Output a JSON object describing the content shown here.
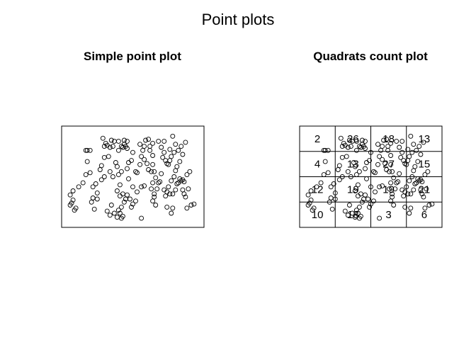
{
  "figure": {
    "title": "Point plots"
  },
  "chart_data": [
    {
      "type": "scatter",
      "title": "Simple point plot",
      "xlim": [
        0,
        1
      ],
      "ylim": [
        0,
        1
      ],
      "points": [
        [
          0.06,
          0.32
        ],
        [
          0.08,
          0.27
        ],
        [
          0.07,
          0.24
        ],
        [
          0.06,
          0.22
        ],
        [
          0.09,
          0.17
        ],
        [
          0.1,
          0.19
        ],
        [
          0.08,
          0.36
        ],
        [
          0.12,
          0.4
        ],
        [
          0.15,
          0.44
        ],
        [
          0.17,
          0.52
        ],
        [
          0.18,
          0.65
        ],
        [
          0.17,
          0.76
        ],
        [
          0.2,
          0.76
        ],
        [
          0.2,
          0.54
        ],
        [
          0.22,
          0.4
        ],
        [
          0.21,
          0.25
        ],
        [
          0.23,
          0.18
        ],
        [
          0.25,
          0.28
        ],
        [
          0.24,
          0.43
        ],
        [
          0.27,
          0.57
        ],
        [
          0.28,
          0.61
        ],
        [
          0.3,
          0.8
        ],
        [
          0.29,
          0.88
        ],
        [
          0.31,
          0.83
        ],
        [
          0.32,
          0.81
        ],
        [
          0.34,
          0.79
        ],
        [
          0.35,
          0.86
        ],
        [
          0.36,
          0.8
        ],
        [
          0.37,
          0.85
        ],
        [
          0.38,
          0.64
        ],
        [
          0.39,
          0.6
        ],
        [
          0.4,
          0.76
        ],
        [
          0.42,
          0.8
        ],
        [
          0.43,
          0.79
        ],
        [
          0.44,
          0.82
        ],
        [
          0.45,
          0.8
        ],
        [
          0.44,
          0.86
        ],
        [
          0.46,
          0.78
        ],
        [
          0.41,
          0.42
        ],
        [
          0.39,
          0.36
        ],
        [
          0.41,
          0.31
        ],
        [
          0.43,
          0.33
        ],
        [
          0.44,
          0.25
        ],
        [
          0.42,
          0.2
        ],
        [
          0.4,
          0.17
        ],
        [
          0.41,
          0.14
        ],
        [
          0.43,
          0.11
        ],
        [
          0.42,
          0.09
        ],
        [
          0.39,
          0.1
        ],
        [
          0.37,
          0.14
        ],
        [
          0.34,
          0.12
        ],
        [
          0.32,
          0.16
        ],
        [
          0.35,
          0.22
        ],
        [
          0.45,
          0.28
        ],
        [
          0.46,
          0.32
        ],
        [
          0.48,
          0.28
        ],
        [
          0.5,
          0.23
        ],
        [
          0.49,
          0.2
        ],
        [
          0.52,
          0.26
        ],
        [
          0.53,
          0.35
        ],
        [
          0.5,
          0.4
        ],
        [
          0.47,
          0.48
        ],
        [
          0.52,
          0.55
        ],
        [
          0.53,
          0.54
        ],
        [
          0.55,
          0.62
        ],
        [
          0.56,
          0.7
        ],
        [
          0.57,
          0.76
        ],
        [
          0.58,
          0.8
        ],
        [
          0.59,
          0.86
        ],
        [
          0.61,
          0.87
        ],
        [
          0.62,
          0.8
        ],
        [
          0.62,
          0.76
        ],
        [
          0.64,
          0.71
        ],
        [
          0.64,
          0.62
        ],
        [
          0.61,
          0.57
        ],
        [
          0.63,
          0.55
        ],
        [
          0.65,
          0.55
        ],
        [
          0.64,
          0.44
        ],
        [
          0.63,
          0.38
        ],
        [
          0.65,
          0.33
        ],
        [
          0.65,
          0.3
        ],
        [
          0.64,
          0.26
        ],
        [
          0.66,
          0.22
        ],
        [
          0.56,
          0.09
        ],
        [
          0.58,
          0.67
        ],
        [
          0.55,
          0.82
        ],
        [
          0.5,
          0.74
        ],
        [
          0.49,
          0.66
        ],
        [
          0.47,
          0.64
        ],
        [
          0.46,
          0.58
        ],
        [
          0.68,
          0.85
        ],
        [
          0.7,
          0.79
        ],
        [
          0.72,
          0.74
        ],
        [
          0.71,
          0.69
        ],
        [
          0.73,
          0.66
        ],
        [
          0.74,
          0.63
        ],
        [
          0.76,
          0.66
        ],
        [
          0.75,
          0.62
        ],
        [
          0.77,
          0.7
        ],
        [
          0.79,
          0.74
        ],
        [
          0.76,
          0.77
        ],
        [
          0.78,
          0.9
        ],
        [
          0.8,
          0.82
        ],
        [
          0.82,
          0.76
        ],
        [
          0.84,
          0.8
        ],
        [
          0.85,
          0.72
        ],
        [
          0.83,
          0.65
        ],
        [
          0.81,
          0.6
        ],
        [
          0.8,
          0.56
        ],
        [
          0.79,
          0.5
        ],
        [
          0.77,
          0.46
        ],
        [
          0.75,
          0.4
        ],
        [
          0.74,
          0.35
        ],
        [
          0.76,
          0.33
        ],
        [
          0.78,
          0.33
        ],
        [
          0.8,
          0.37
        ],
        [
          0.81,
          0.43
        ],
        [
          0.82,
          0.44
        ],
        [
          0.83,
          0.48
        ],
        [
          0.84,
          0.46
        ],
        [
          0.85,
          0.47
        ],
        [
          0.86,
          0.45
        ],
        [
          0.88,
          0.52
        ],
        [
          0.9,
          0.55
        ],
        [
          0.89,
          0.38
        ],
        [
          0.86,
          0.33
        ],
        [
          0.87,
          0.3
        ],
        [
          0.85,
          0.37
        ],
        [
          0.91,
          0.22
        ],
        [
          0.93,
          0.23
        ],
        [
          0.88,
          0.19
        ],
        [
          0.78,
          0.19
        ],
        [
          0.77,
          0.14
        ],
        [
          0.7,
          0.53
        ],
        [
          0.69,
          0.45
        ],
        [
          0.68,
          0.44
        ],
        [
          0.67,
          0.38
        ],
        [
          0.66,
          0.49
        ],
        [
          0.72,
          0.37
        ],
        [
          0.73,
          0.31
        ],
        [
          0.74,
          0.2
        ],
        [
          0.22,
          0.29
        ],
        [
          0.25,
          0.34
        ],
        [
          0.28,
          0.47
        ],
        [
          0.3,
          0.5
        ],
        [
          0.34,
          0.55
        ],
        [
          0.36,
          0.5
        ],
        [
          0.4,
          0.52
        ],
        [
          0.42,
          0.55
        ],
        [
          0.46,
          0.85
        ],
        [
          0.4,
          0.85
        ],
        [
          0.3,
          0.69
        ],
        [
          0.33,
          0.7
        ],
        [
          0.18,
          0.76
        ],
        [
          0.56,
          0.4
        ],
        [
          0.58,
          0.41
        ],
        [
          0.6,
          0.63
        ],
        [
          0.87,
          0.84
        ],
        [
          0.72,
          0.85
        ],
        [
          0.64,
          0.83
        ]
      ]
    },
    {
      "type": "scatter",
      "title": "Quadrats count plot",
      "xlim": [
        0,
        1
      ],
      "ylim": [
        0,
        1
      ],
      "quadrats": {
        "nx": 4,
        "ny": 4
      },
      "counts": [
        [
          "2",
          "26",
          "18",
          "13"
        ],
        [
          "4",
          "13",
          "27",
          "15"
        ],
        [
          "12",
          "19",
          "19",
          "21"
        ],
        [
          "10",
          "18",
          "3",
          "6"
        ]
      ]
    }
  ]
}
